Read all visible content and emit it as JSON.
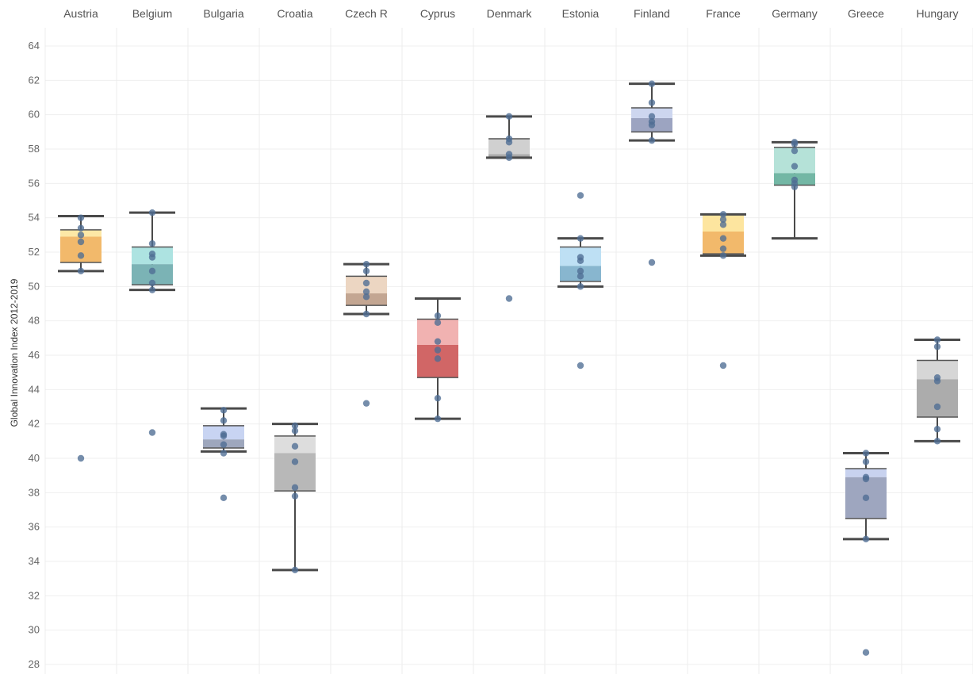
{
  "chart_data": {
    "type": "box",
    "ylabel": "Global Innovation Index  2012-2019",
    "ylim": [
      27.5,
      65
    ],
    "yticks": [
      28,
      30,
      32,
      34,
      36,
      38,
      40,
      42,
      44,
      46,
      48,
      50,
      52,
      54,
      56,
      58,
      60,
      62,
      64
    ],
    "grid": true,
    "categories": [
      {
        "name": "Austria",
        "color_light": "#fde8a6",
        "color_dark": "#f2b96b",
        "whisker_low": 50.9,
        "q1": 51.4,
        "median": 52.9,
        "q3": 53.3,
        "whisker_high": 54.1,
        "points": [
          54.0,
          53.4,
          53.0,
          52.6,
          51.8,
          50.9,
          40.0
        ]
      },
      {
        "name": "Belgium",
        "color_light": "#ade3e1",
        "color_dark": "#7bb3b5",
        "whisker_low": 49.8,
        "q1": 50.1,
        "median": 51.3,
        "q3": 52.3,
        "whisker_high": 54.3,
        "points": [
          54.3,
          52.5,
          51.9,
          51.7,
          50.9,
          50.2,
          49.8,
          41.5
        ]
      },
      {
        "name": "Bulgaria",
        "color_light": "#c8d4f2",
        "color_dark": "#9ea7bd",
        "whisker_low": 40.4,
        "q1": 40.6,
        "median": 41.1,
        "q3": 41.9,
        "whisker_high": 42.9,
        "points": [
          42.8,
          42.2,
          41.4,
          41.3,
          40.8,
          40.3,
          37.7
        ]
      },
      {
        "name": "Croatia",
        "color_light": "#dddddd",
        "color_dark": "#b8b8b8",
        "whisker_low": 33.5,
        "q1": 38.1,
        "median": 40.3,
        "q3": 41.3,
        "whisker_high": 42.0,
        "points": [
          41.9,
          41.6,
          40.7,
          39.8,
          38.3,
          37.8,
          33.5
        ]
      },
      {
        "name": "Czech R",
        "color_light": "#ecd6c2",
        "color_dark": "#c3a692",
        "whisker_low": 48.4,
        "q1": 48.9,
        "median": 49.6,
        "q3": 50.6,
        "whisker_high": 51.3,
        "points": [
          51.3,
          50.9,
          50.2,
          49.7,
          49.4,
          48.4,
          43.2
        ]
      },
      {
        "name": "Cyprus",
        "color_light": "#f1b2b1",
        "color_dark": "#d16666",
        "whisker_low": 42.3,
        "q1": 44.7,
        "median": 46.6,
        "q3": 48.1,
        "whisker_high": 49.3,
        "points": [
          48.3,
          47.9,
          46.8,
          46.3,
          45.8,
          43.5,
          42.3
        ]
      },
      {
        "name": "Denmark",
        "color_light": "#d0d0d0",
        "color_dark": "#aaaaaa",
        "whisker_low": 57.5,
        "q1": 57.5,
        "median": 57.7,
        "q3": 58.6,
        "whisker_high": 59.9,
        "points": [
          59.9,
          58.6,
          58.4,
          57.7,
          57.5,
          49.3
        ]
      },
      {
        "name": "Estonia",
        "color_light": "#bee0f4",
        "color_dark": "#88b6cf",
        "whisker_low": 50.0,
        "q1": 50.3,
        "median": 51.2,
        "q3": 52.3,
        "whisker_high": 52.8,
        "points": [
          55.3,
          52.8,
          51.7,
          51.5,
          50.9,
          50.6,
          50.0,
          45.4
        ]
      },
      {
        "name": "Finland",
        "color_light": "#cdd6ef",
        "color_dark": "#9ca4c1",
        "whisker_low": 58.5,
        "q1": 59.0,
        "median": 59.8,
        "q3": 60.4,
        "whisker_high": 61.8,
        "points": [
          61.8,
          60.7,
          59.9,
          59.6,
          59.4,
          58.5,
          51.4
        ]
      },
      {
        "name": "France",
        "color_light": "#fde59f",
        "color_dark": "#f2b96b",
        "whisker_low": 51.8,
        "q1": 51.9,
        "median": 53.2,
        "q3": 54.2,
        "whisker_high": 54.2,
        "points": [
          54.2,
          53.9,
          53.6,
          52.8,
          52.2,
          51.8,
          45.4
        ]
      },
      {
        "name": "Germany",
        "color_light": "#b5e2d8",
        "color_dark": "#73b7a5",
        "whisker_low": 52.8,
        "q1": 55.9,
        "median": 56.6,
        "q3": 58.1,
        "whisker_high": 58.4,
        "points": [
          58.4,
          58.3,
          57.9,
          57.0,
          56.2,
          56.0,
          55.8
        ]
      },
      {
        "name": "Greece",
        "color_light": "#c8d2ef",
        "color_dark": "#9ea6bf",
        "whisker_low": 35.3,
        "q1": 36.5,
        "median": 38.9,
        "q3": 39.4,
        "whisker_high": 40.3,
        "points": [
          40.3,
          39.8,
          38.9,
          38.8,
          37.7,
          35.3,
          28.7
        ]
      },
      {
        "name": "Hungary",
        "color_light": "#d6d6d6",
        "color_dark": "#acacac",
        "whisker_low": 41.0,
        "q1": 42.4,
        "median": 44.6,
        "q3": 45.7,
        "whisker_high": 46.9,
        "points": [
          46.9,
          46.5,
          44.7,
          44.5,
          43.0,
          41.7,
          41.0
        ]
      }
    ]
  }
}
